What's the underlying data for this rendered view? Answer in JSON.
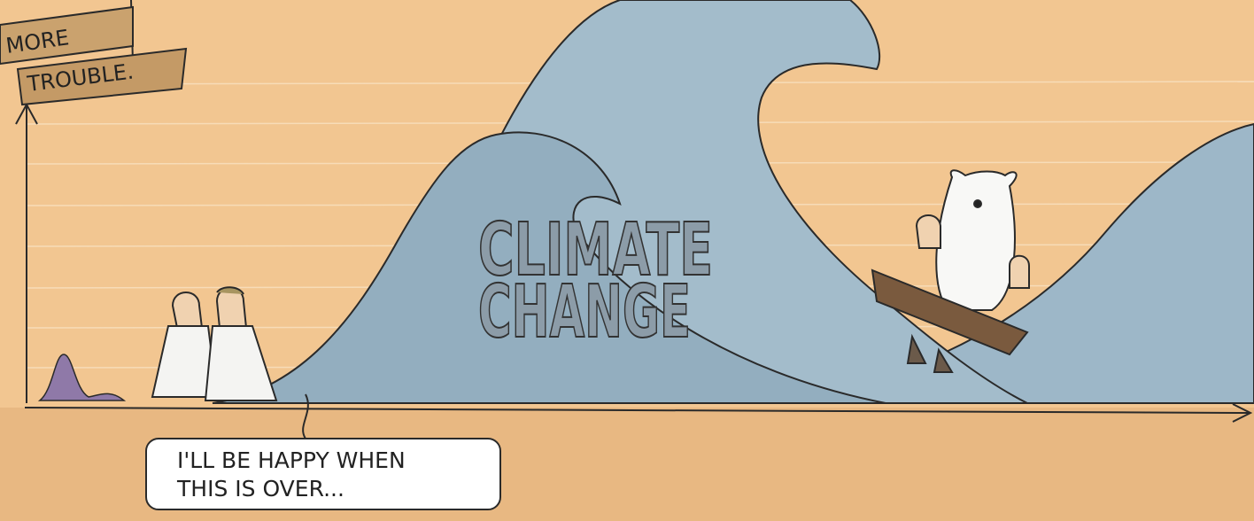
{
  "sign": {
    "lines": [
      "MORE",
      "TROUBLE."
    ]
  },
  "wave_label": {
    "lines": [
      "CLIMATE",
      "CHANGE"
    ]
  },
  "speech_bubble": {
    "lines": [
      "I'LL BE HAPPY WHEN",
      "THIS IS OVER..."
    ]
  }
}
